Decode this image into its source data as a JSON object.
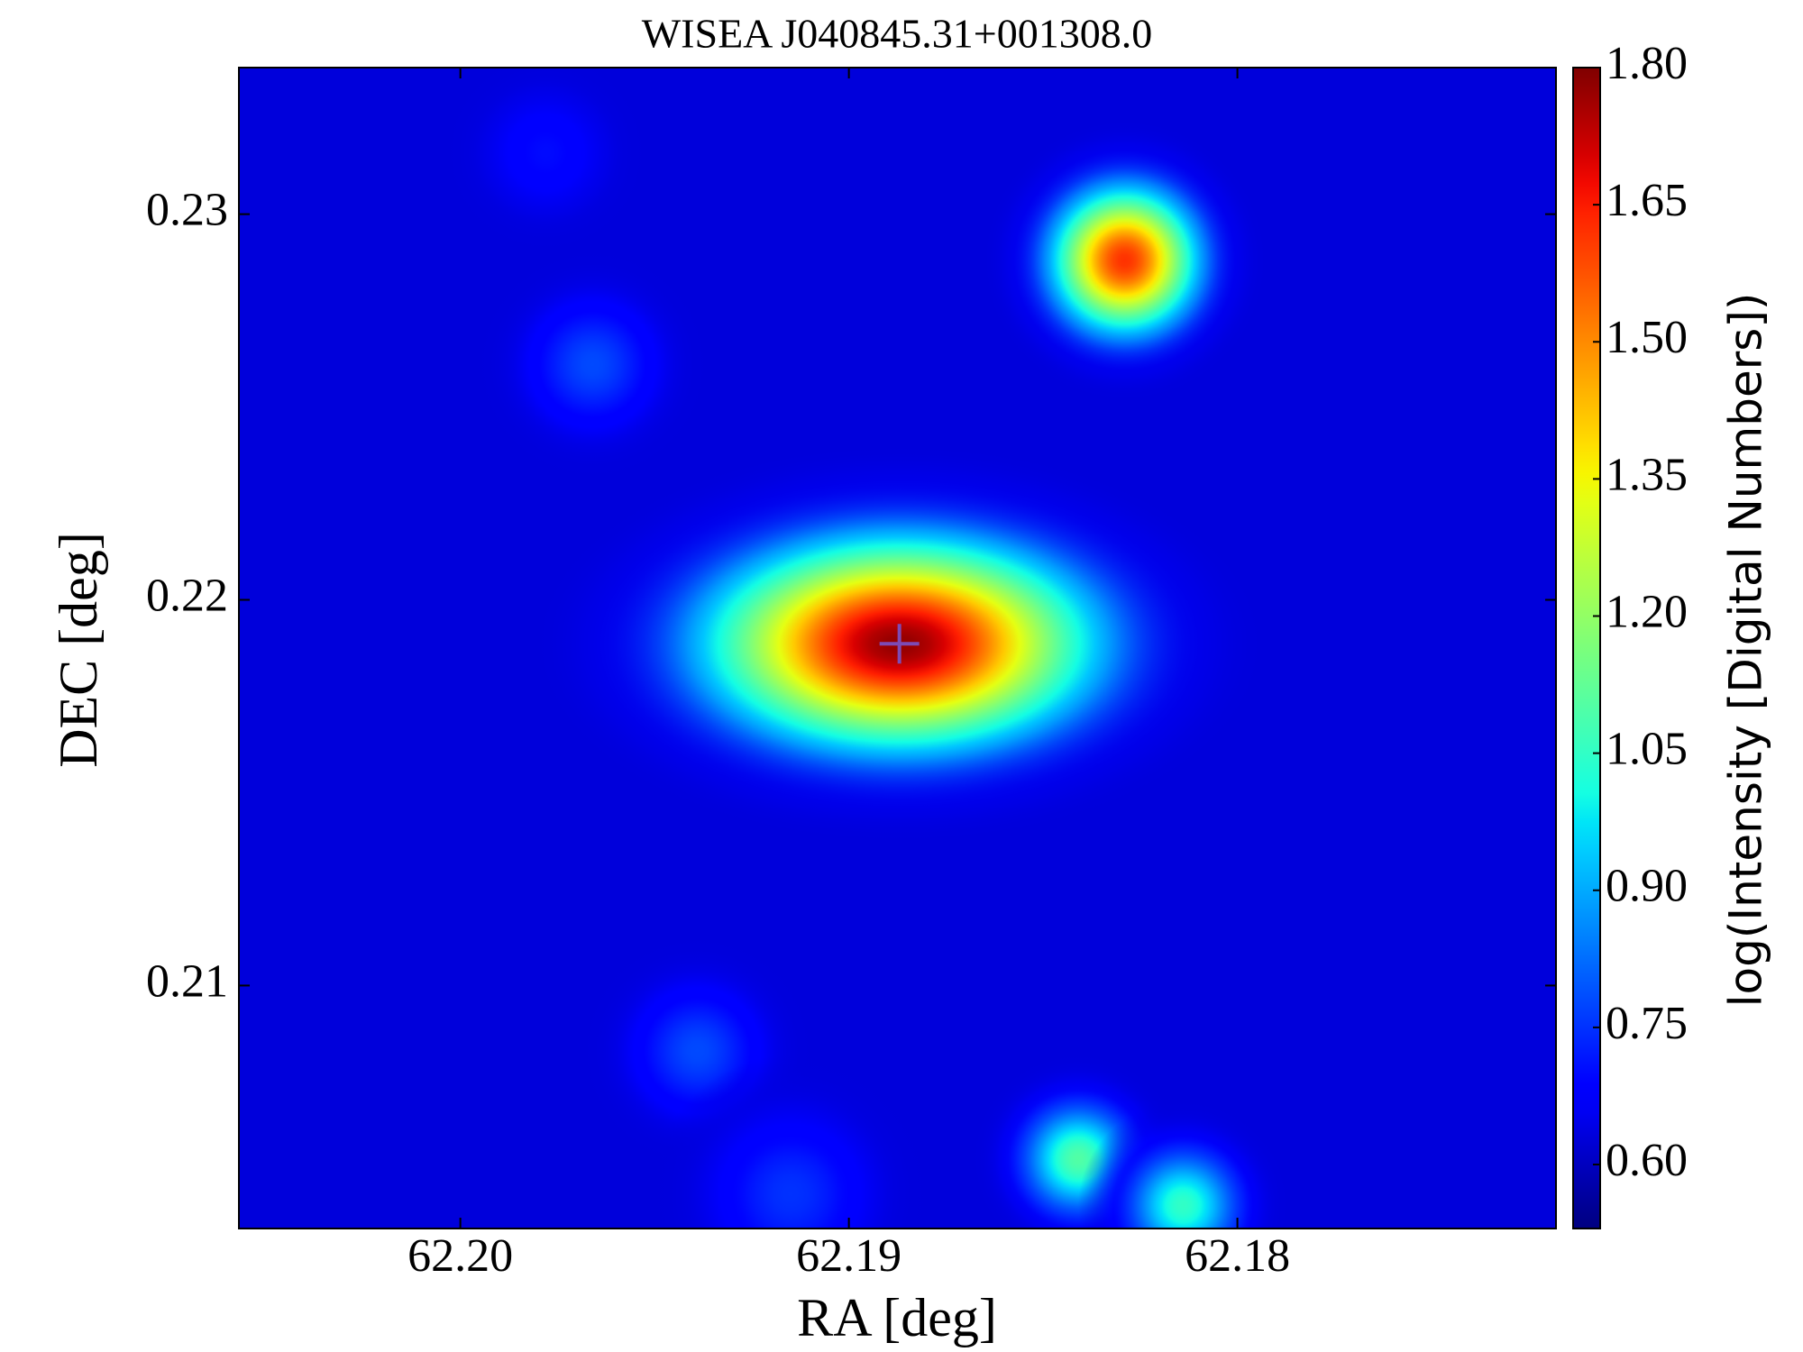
{
  "chart_data": {
    "type": "heatmap",
    "title": "WISEA J040845.31+001308.0",
    "x_label": "RA [deg]",
    "y_label": "DEC [deg]",
    "colorbar_label": "log(Intensity [Digital Numbers])",
    "colormap": "jet",
    "xlim": [
      62.2057,
      62.1718
    ],
    "ylim": [
      0.2037,
      0.2338
    ],
    "xticks": [
      {
        "value": 62.2,
        "label": "62.20"
      },
      62.19,
      62.18
    ],
    "yticks": [
      0.21,
      0.22,
      0.23
    ],
    "clim": [
      0.53,
      1.8
    ],
    "cticks": [
      {
        "value": 0.6,
        "label": "0.60"
      },
      0.75,
      {
        "value": 0.9,
        "label": "0.90"
      },
      1.05,
      {
        "value": 1.2,
        "label": "1.20"
      },
      1.35,
      {
        "value": 1.5,
        "label": "1.50"
      },
      1.65,
      {
        "value": 1.8,
        "label": "1.80"
      }
    ],
    "background": 0.63,
    "sources": [
      {
        "ra": 62.1978,
        "dec": 0.2316,
        "peak": 0.7,
        "sigma_ra": 0.0009,
        "sigma_dec": 0.0009
      },
      {
        "ra": 62.1966,
        "dec": 0.2261,
        "peak": 0.78,
        "sigma_ra": 0.001,
        "sigma_dec": 0.001
      },
      {
        "ra": 62.1939,
        "dec": 0.2083,
        "peak": 0.78,
        "sigma_ra": 0.001,
        "sigma_dec": 0.001
      },
      {
        "ra": 62.1915,
        "dec": 0.2046,
        "peak": 0.75,
        "sigma_ra": 0.0012,
        "sigma_dec": 0.0012
      },
      {
        "ra": 62.1887,
        "dec": 0.21886,
        "peak": 1.78,
        "sigma_ra": 0.0031,
        "sigma_dec": 0.0017
      },
      {
        "ra": 62.1829,
        "dec": 0.2288,
        "peak": 1.62,
        "sigma_ra": 0.0012,
        "sigma_dec": 0.0012
      },
      {
        "ra": 62.1841,
        "dec": 0.2055,
        "peak": 1.1,
        "sigma_ra": 0.0009,
        "sigma_dec": 0.0009
      },
      {
        "ra": 62.1814,
        "dec": 0.2043,
        "peak": 1.05,
        "sigma_ra": 0.0009,
        "sigma_dec": 0.0009
      }
    ],
    "marker": {
      "ra": 62.1887,
      "dec": 0.21886,
      "color": "#7d4bb5"
    }
  }
}
